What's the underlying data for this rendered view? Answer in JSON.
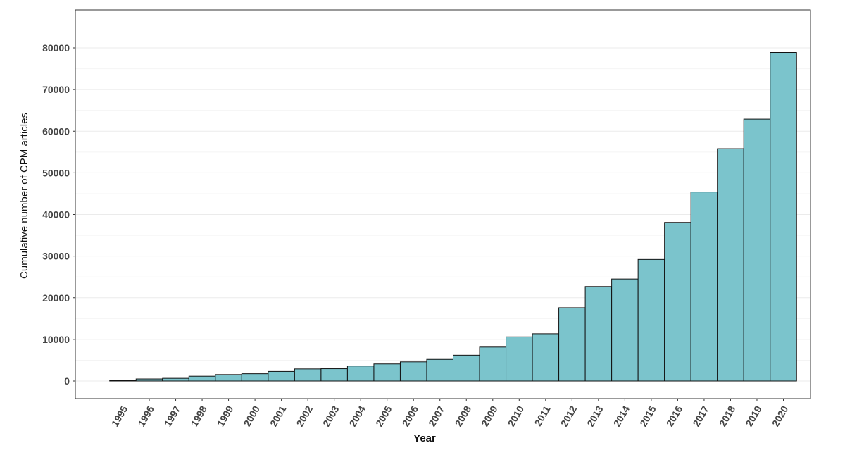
{
  "chart_data": {
    "type": "bar",
    "xlabel": "Year",
    "ylabel": "Cumulative number of CPM articles",
    "ylim": [
      0,
      80000
    ],
    "yticks": [
      0,
      10000,
      20000,
      30000,
      40000,
      50000,
      60000,
      70000,
      80000
    ],
    "grid": true,
    "categories": [
      "1995",
      "1996",
      "1997",
      "1998",
      "1999",
      "2000",
      "2001",
      "2002",
      "2003",
      "2004",
      "2005",
      "2006",
      "2007",
      "2008",
      "2009",
      "2010",
      "2011",
      "2012",
      "2013",
      "2014",
      "2015",
      "2016",
      "2017",
      "2018",
      "2019",
      "2020"
    ],
    "values": [
      150,
      500,
      650,
      1150,
      1550,
      1750,
      2300,
      2900,
      2950,
      3600,
      4100,
      4600,
      5200,
      6200,
      8150,
      10600,
      11350,
      17600,
      22700,
      24500,
      29200,
      38100,
      45400,
      55800,
      62900,
      78900
    ],
    "colors": {
      "bar_fill": "#7bc4cc",
      "bar_stroke": "#111111"
    }
  }
}
